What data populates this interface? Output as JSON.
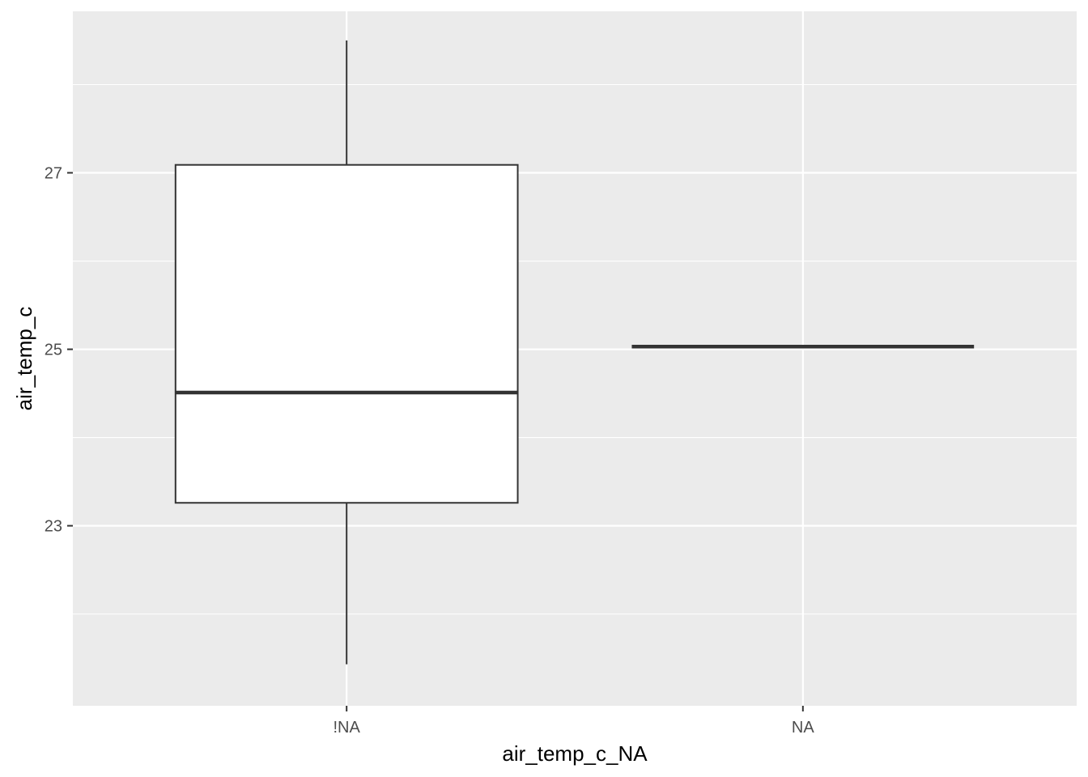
{
  "chart_data": {
    "type": "boxplot",
    "xlabel": "air_temp_c_NA",
    "ylabel": "air_temp_c",
    "categories": [
      "!NA",
      "NA"
    ],
    "boxes": [
      {
        "category": "!NA",
        "min": 21.43,
        "q1": 23.26,
        "median": 24.51,
        "q3": 27.09,
        "max": 28.5
      },
      {
        "category": "NA",
        "min": 25.03,
        "q1": 25.03,
        "median": 25.03,
        "q3": 25.03,
        "max": 25.03
      }
    ],
    "yticks": [
      23,
      25,
      27
    ],
    "ylim": [
      20.96,
      28.83
    ],
    "grid": true,
    "legend": "none",
    "colors": {
      "panel": "#ebebeb",
      "grid": "#ffffff",
      "box_fill": "#ffffff",
      "box_line": "#333333",
      "tick": "#333333"
    }
  }
}
